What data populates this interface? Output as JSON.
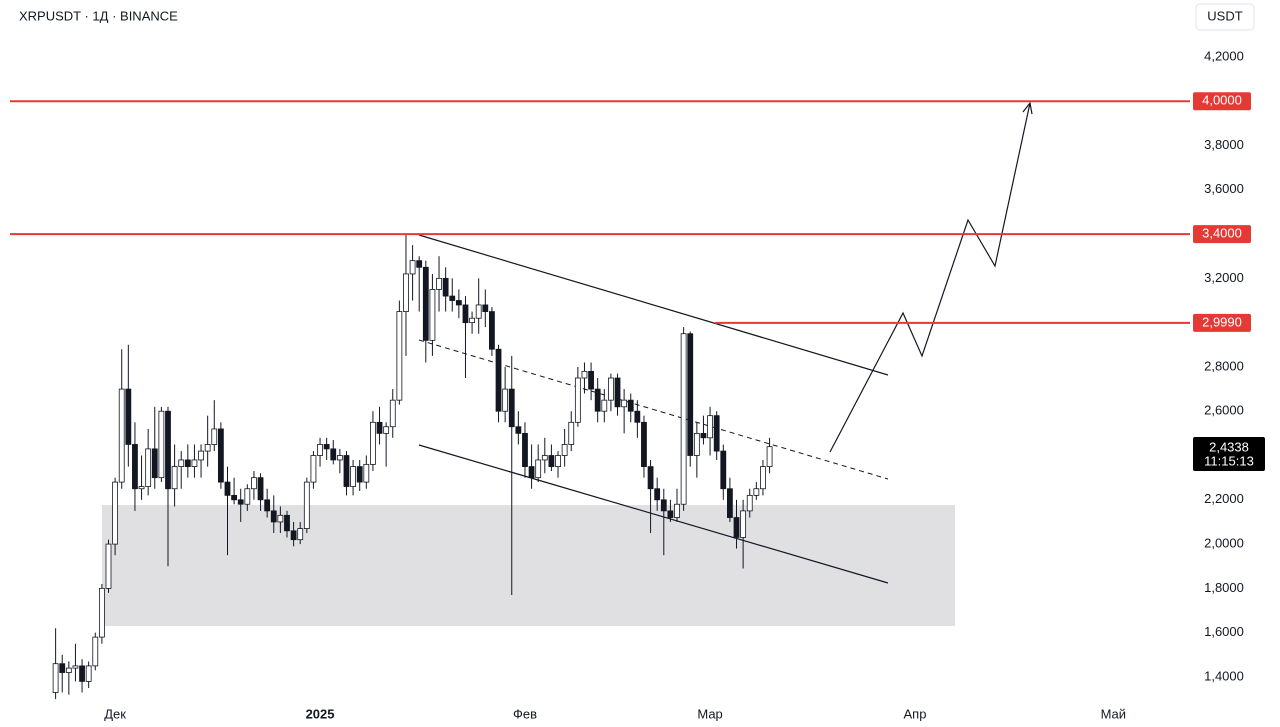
{
  "chart_data": {
    "type": "candlestick",
    "title": "XRPUSDT · 1Д · BINANCE",
    "currency": "USDT",
    "ylim": [
      1.296,
      4.457
    ],
    "xlim": [
      -15.9,
      162.6
    ],
    "yticks": [
      {
        "value": 4.2,
        "label": "4,2000"
      },
      {
        "value": 3.8,
        "label": "3,8000"
      },
      {
        "value": 3.6,
        "label": "3,6000"
      },
      {
        "value": 3.2,
        "label": "3,2000"
      },
      {
        "value": 2.8,
        "label": "2,8000"
      },
      {
        "value": 2.6,
        "label": "2,6000"
      },
      {
        "value": 2.2,
        "label": "2,2000"
      },
      {
        "value": 2.0,
        "label": "2,0000"
      },
      {
        "value": 1.8,
        "label": "1,8000"
      },
      {
        "value": 1.6,
        "label": "1,6000"
      },
      {
        "value": 1.4,
        "label": "1,4000"
      }
    ],
    "xticks": [
      {
        "value": 0,
        "label": "Дек"
      },
      {
        "value": 31,
        "label": "2025"
      },
      {
        "value": 62,
        "label": "Фев"
      },
      {
        "value": 90,
        "label": "Мар"
      },
      {
        "value": 121,
        "label": "Апр"
      },
      {
        "value": 151,
        "label": "Май"
      }
    ],
    "candle_start": -9,
    "candles": [
      [
        1.33,
        1.62,
        1.3,
        1.46
      ],
      [
        1.46,
        1.5,
        1.33,
        1.42
      ],
      [
        1.42,
        1.47,
        1.32,
        1.44
      ],
      [
        1.44,
        1.55,
        1.38,
        1.45
      ],
      [
        1.45,
        1.48,
        1.33,
        1.38
      ],
      [
        1.38,
        1.47,
        1.35,
        1.45
      ],
      [
        1.45,
        1.6,
        1.43,
        1.58
      ],
      [
        1.58,
        1.82,
        1.55,
        1.8
      ],
      [
        1.8,
        2.02,
        1.78,
        2.0
      ],
      [
        2.0,
        2.3,
        1.95,
        2.28
      ],
      [
        2.28,
        2.88,
        2.25,
        2.7
      ],
      [
        2.7,
        2.9,
        2.35,
        2.45
      ],
      [
        2.45,
        2.55,
        2.15,
        2.25
      ],
      [
        2.25,
        2.4,
        2.2,
        2.26
      ],
      [
        2.26,
        2.52,
        2.22,
        2.43
      ],
      [
        2.43,
        2.62,
        2.25,
        2.3
      ],
      [
        2.3,
        2.62,
        2.28,
        2.6
      ],
      [
        2.6,
        2.62,
        1.9,
        2.25
      ],
      [
        2.25,
        2.45,
        2.17,
        2.35
      ],
      [
        2.35,
        2.42,
        2.25,
        2.38
      ],
      [
        2.38,
        2.45,
        2.3,
        2.35
      ],
      [
        2.35,
        2.45,
        2.3,
        2.38
      ],
      [
        2.38,
        2.45,
        2.3,
        2.42
      ],
      [
        2.42,
        2.58,
        2.35,
        2.45
      ],
      [
        2.45,
        2.65,
        2.42,
        2.52
      ],
      [
        2.52,
        2.55,
        2.25,
        2.28
      ],
      [
        2.28,
        2.35,
        1.95,
        2.22
      ],
      [
        2.22,
        2.3,
        2.18,
        2.2
      ],
      [
        2.2,
        2.25,
        2.1,
        2.18
      ],
      [
        2.18,
        2.27,
        2.15,
        2.25
      ],
      [
        2.25,
        2.33,
        2.2,
        2.3
      ],
      [
        2.3,
        2.32,
        2.15,
        2.2
      ],
      [
        2.2,
        2.25,
        2.12,
        2.15
      ],
      [
        2.15,
        2.22,
        2.05,
        2.1
      ],
      [
        2.1,
        2.17,
        2.05,
        2.13
      ],
      [
        2.13,
        2.15,
        2.03,
        2.06
      ],
      [
        2.06,
        2.1,
        1.99,
        2.02
      ],
      [
        2.02,
        2.1,
        2.0,
        2.07
      ],
      [
        2.07,
        2.3,
        2.05,
        2.28
      ],
      [
        2.28,
        2.42,
        2.25,
        2.4
      ],
      [
        2.4,
        2.48,
        2.35,
        2.45
      ],
      [
        2.45,
        2.48,
        2.38,
        2.43
      ],
      [
        2.43,
        2.47,
        2.36,
        2.38
      ],
      [
        2.38,
        2.43,
        2.32,
        2.4
      ],
      [
        2.4,
        2.42,
        2.22,
        2.26
      ],
      [
        2.26,
        2.38,
        2.22,
        2.35
      ],
      [
        2.35,
        2.38,
        2.24,
        2.28
      ],
      [
        2.28,
        2.4,
        2.25,
        2.36
      ],
      [
        2.36,
        2.6,
        2.33,
        2.55
      ],
      [
        2.55,
        2.62,
        2.45,
        2.5
      ],
      [
        2.5,
        2.55,
        2.35,
        2.53
      ],
      [
        2.53,
        2.7,
        2.48,
        2.65
      ],
      [
        2.65,
        3.1,
        2.63,
        3.05
      ],
      [
        3.05,
        3.4,
        2.85,
        3.22
      ],
      [
        3.22,
        3.35,
        3.1,
        3.28
      ],
      [
        3.28,
        3.3,
        3.05,
        3.25
      ],
      [
        3.25,
        3.28,
        2.82,
        2.92
      ],
      [
        2.92,
        3.22,
        2.85,
        3.15
      ],
      [
        3.15,
        3.3,
        3.05,
        3.2
      ],
      [
        3.2,
        3.25,
        3.05,
        3.12
      ],
      [
        3.12,
        3.2,
        3.05,
        3.1
      ],
      [
        3.1,
        3.15,
        3.02,
        3.08
      ],
      [
        3.08,
        3.12,
        2.75,
        3.0
      ],
      [
        3.0,
        3.05,
        2.95,
        3.02
      ],
      [
        3.02,
        3.2,
        2.95,
        3.08
      ],
      [
        3.08,
        3.15,
        2.98,
        3.05
      ],
      [
        3.05,
        3.07,
        2.85,
        2.88
      ],
      [
        2.88,
        2.9,
        2.55,
        2.6
      ],
      [
        2.6,
        2.8,
        2.55,
        2.7
      ],
      [
        2.7,
        2.85,
        1.77,
        2.53
      ],
      [
        2.53,
        2.6,
        2.45,
        2.5
      ],
      [
        2.5,
        2.55,
        2.3,
        2.35
      ],
      [
        2.35,
        2.45,
        2.25,
        2.3
      ],
      [
        2.3,
        2.45,
        2.28,
        2.38
      ],
      [
        2.38,
        2.48,
        2.32,
        2.4
      ],
      [
        2.4,
        2.45,
        2.33,
        2.35
      ],
      [
        2.35,
        2.42,
        2.3,
        2.4
      ],
      [
        2.4,
        2.52,
        2.35,
        2.45
      ],
      [
        2.45,
        2.6,
        2.42,
        2.55
      ],
      [
        2.55,
        2.8,
        2.53,
        2.75
      ],
      [
        2.75,
        2.82,
        2.68,
        2.78
      ],
      [
        2.78,
        2.82,
        2.65,
        2.7
      ],
      [
        2.7,
        2.75,
        2.55,
        2.6
      ],
      [
        2.6,
        2.7,
        2.55,
        2.65
      ],
      [
        2.65,
        2.77,
        2.6,
        2.75
      ],
      [
        2.75,
        2.77,
        2.58,
        2.62
      ],
      [
        2.62,
        2.7,
        2.5,
        2.65
      ],
      [
        2.65,
        2.68,
        2.55,
        2.6
      ],
      [
        2.6,
        2.65,
        2.48,
        2.55
      ],
      [
        2.55,
        2.58,
        2.3,
        2.35
      ],
      [
        2.35,
        2.38,
        2.05,
        2.25
      ],
      [
        2.25,
        2.3,
        2.15,
        2.2
      ],
      [
        2.2,
        2.25,
        1.95,
        2.15
      ],
      [
        2.15,
        2.2,
        2.1,
        2.12
      ],
      [
        2.12,
        2.25,
        2.1,
        2.18
      ],
      [
        2.18,
        2.98,
        2.15,
        2.95
      ],
      [
        2.95,
        2.96,
        2.35,
        2.4
      ],
      [
        2.4,
        2.55,
        2.3,
        2.5
      ],
      [
        2.5,
        2.58,
        2.45,
        2.48
      ],
      [
        2.48,
        2.62,
        2.4,
        2.58
      ],
      [
        2.58,
        2.6,
        2.38,
        2.42
      ],
      [
        2.42,
        2.45,
        2.2,
        2.25
      ],
      [
        2.25,
        2.3,
        2.1,
        2.12
      ],
      [
        2.12,
        2.2,
        1.98,
        2.03
      ],
      [
        2.03,
        2.2,
        1.89,
        2.15
      ],
      [
        2.15,
        2.25,
        2.12,
        2.22
      ],
      [
        2.22,
        2.28,
        2.2,
        2.25
      ],
      [
        2.25,
        2.38,
        2.22,
        2.35
      ],
      [
        2.35,
        2.48,
        2.32,
        2.44
      ]
    ],
    "levels": [
      {
        "value": 4.0,
        "label": "4,0000"
      },
      {
        "value": 3.4,
        "label": "3,4000"
      },
      {
        "value": 2.999,
        "label": "2,9990"
      }
    ],
    "level_color": "#e53935",
    "last_price": {
      "value": 2.4338,
      "label": "2,4338",
      "countdown": "11:15:13"
    }
  }
}
